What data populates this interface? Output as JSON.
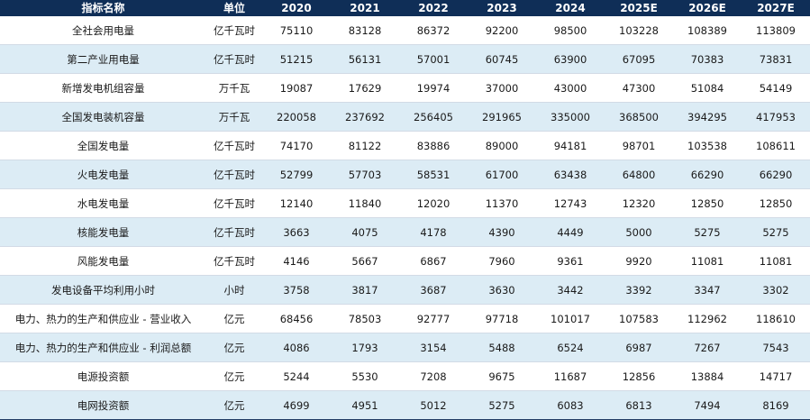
{
  "header": [
    "指标名称",
    "单位",
    "2020",
    "2021",
    "2022",
    "2023",
    "2024",
    "2025E",
    "2026E",
    "2027E"
  ],
  "rows": [
    {
      "name": "全社会用电量",
      "unit": "亿千瓦时",
      "values": [
        "75110",
        "83128",
        "86372",
        "92200",
        "98500",
        "103228",
        "108389",
        "113809"
      ]
    },
    {
      "name": "第二产业用电量",
      "unit": "亿千瓦时",
      "values": [
        "51215",
        "56131",
        "57001",
        "60745",
        "63900",
        "67095",
        "70383",
        "73831"
      ]
    },
    {
      "name": "新增发电机组容量",
      "unit": "万千瓦",
      "values": [
        "19087",
        "17629",
        "19974",
        "37000",
        "43000",
        "47300",
        "51084",
        "54149"
      ]
    },
    {
      "name": "全国发电装机容量",
      "unit": "万千瓦",
      "values": [
        "220058",
        "237692",
        "256405",
        "291965",
        "335000",
        "368500",
        "394295",
        "417953"
      ]
    },
    {
      "name": "全国发电量",
      "unit": "亿千瓦时",
      "values": [
        "74170",
        "81122",
        "83886",
        "89000",
        "94181",
        "98701",
        "103538",
        "108611"
      ]
    },
    {
      "name": "火电发电量",
      "unit": "亿千瓦时",
      "values": [
        "52799",
        "57703",
        "58531",
        "61700",
        "63438",
        "64800",
        "66290",
        "66290"
      ]
    },
    {
      "name": "水电发电量",
      "unit": "亿千瓦时",
      "values": [
        "12140",
        "11840",
        "12020",
        "11370",
        "12743",
        "12320",
        "12850",
        "12850"
      ]
    },
    {
      "name": "核能发电量",
      "unit": "亿千瓦时",
      "values": [
        "3663",
        "4075",
        "4178",
        "4390",
        "4449",
        "5000",
        "5275",
        "5275"
      ]
    },
    {
      "name": "风能发电量",
      "unit": "亿千瓦时",
      "values": [
        "4146",
        "5667",
        "6867",
        "7960",
        "9361",
        "9920",
        "11081",
        "11081"
      ]
    },
    {
      "name": "发电设备平均利用小时",
      "unit": "小时",
      "values": [
        "3758",
        "3817",
        "3687",
        "3630",
        "3442",
        "3392",
        "3347",
        "3302"
      ]
    },
    {
      "name": "电力、热力的生产和供应业 - 营业收入",
      "unit": "亿元",
      "values": [
        "68456",
        "78503",
        "92777",
        "97718",
        "101017",
        "107583",
        "112962",
        "118610"
      ]
    },
    {
      "name": "电力、热力的生产和供应业 - 利润总额",
      "unit": "亿元",
      "values": [
        "4086",
        "1793",
        "3154",
        "5488",
        "6524",
        "6987",
        "7267",
        "7543"
      ]
    },
    {
      "name": "电源投资额",
      "unit": "亿元",
      "values": [
        "5244",
        "5530",
        "7208",
        "9675",
        "11687",
        "12856",
        "13884",
        "14717"
      ]
    },
    {
      "name": "电网投资额",
      "unit": "亿元",
      "values": [
        "4699",
        "4951",
        "5012",
        "5275",
        "6083",
        "6813",
        "7494",
        "8169"
      ]
    }
  ]
}
